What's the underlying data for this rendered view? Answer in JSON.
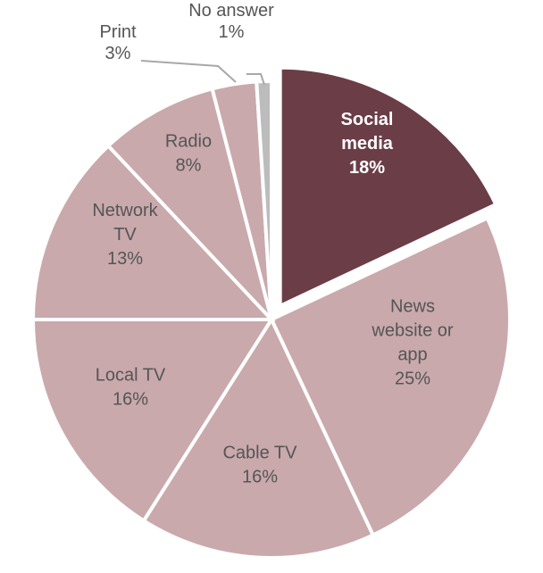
{
  "chart_data": {
    "type": "pie",
    "title": "",
    "slices": [
      {
        "label_lines": [
          "Social",
          "media"
        ],
        "value_label": "18%",
        "value": 18,
        "color": "#6b3d47",
        "text_color": "#ffffff",
        "bold": true,
        "exploded": true
      },
      {
        "label_lines": [
          "News",
          "website or",
          "app"
        ],
        "value_label": "25%",
        "value": 25,
        "color": "#c9a9ac",
        "text_color": "#555555",
        "bold": false,
        "exploded": false
      },
      {
        "label_lines": [
          "Cable TV"
        ],
        "value_label": "16%",
        "value": 16,
        "color": "#c9a9ac",
        "text_color": "#555555",
        "bold": false,
        "exploded": false
      },
      {
        "label_lines": [
          "Local TV"
        ],
        "value_label": "16%",
        "value": 16,
        "color": "#c9a9ac",
        "text_color": "#555555",
        "bold": false,
        "exploded": false
      },
      {
        "label_lines": [
          "Network",
          "TV"
        ],
        "value_label": "13%",
        "value": 13,
        "color": "#c9a9ac",
        "text_color": "#555555",
        "bold": false,
        "exploded": false
      },
      {
        "label_lines": [
          "Radio"
        ],
        "value_label": "8%",
        "value": 8,
        "color": "#c9a9ac",
        "text_color": "#555555",
        "bold": false,
        "exploded": false
      },
      {
        "label_lines": [
          "Print"
        ],
        "value_label": "3%",
        "value": 3,
        "color": "#c9a9ac",
        "text_color": "#555555",
        "bold": false,
        "exploded": false
      },
      {
        "label_lines": [
          "No answer"
        ],
        "value_label": "1%",
        "value": 1,
        "color": "#bcbcbc",
        "text_color": "#555555",
        "bold": false,
        "exploded": false
      }
    ]
  }
}
